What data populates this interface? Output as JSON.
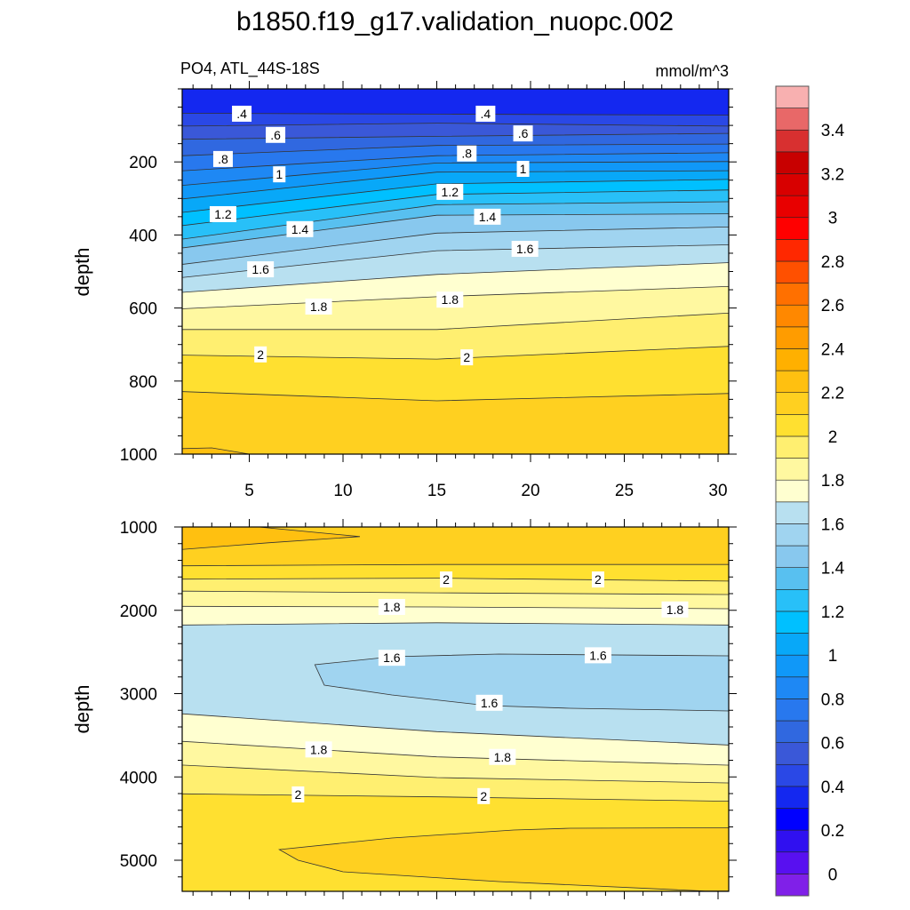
{
  "chart_data": {
    "type": "contour",
    "title": "b1850.f19_g17.validation_nuopc.002",
    "subtitle_left": "PO4, ATL_44S-18S",
    "subtitle_right": "mmol/m^3",
    "ylabel": "depth",
    "xlim": [
      1.4,
      30.6
    ],
    "x_ticks": [
      "5",
      "10",
      "15",
      "20",
      "25",
      "30"
    ],
    "x_tick_values": [
      5,
      10,
      15,
      20,
      25,
      30
    ],
    "profile_x": [
      1.5,
      15,
      30.5
    ],
    "top_panel": {
      "ylim": [
        0,
        1000
      ],
      "y_ticks": [
        "200",
        "400",
        "600",
        "800",
        "1000"
      ],
      "y_tick_values": [
        200,
        400,
        600,
        800,
        1000
      ],
      "surface_band_level": 0.3,
      "contours": [
        {
          "level": 0.4,
          "depth": [
            67,
            69,
            72
          ]
        },
        {
          "level": 0.5,
          "depth": [
            102,
            94,
            102
          ]
        },
        {
          "level": 0.6,
          "depth": [
            138,
            130,
            122
          ]
        },
        {
          "level": 0.7,
          "depth": [
            183,
            155,
            151
          ]
        },
        {
          "level": 0.8,
          "depth": [
            224,
            183,
            175
          ]
        },
        {
          "level": 0.9,
          "depth": [
            264,
            203,
            199
          ]
        },
        {
          "level": 1.0,
          "depth": [
            301,
            228,
            224
          ]
        },
        {
          "level": 1.1,
          "depth": [
            338,
            260,
            248
          ]
        },
        {
          "level": 1.2,
          "depth": [
            374,
            289,
            277
          ]
        },
        {
          "level": 1.3,
          "depth": [
            411,
            317,
            309
          ]
        },
        {
          "level": 1.4,
          "depth": [
            435,
            346,
            342
          ]
        },
        {
          "level": 1.5,
          "depth": [
            480,
            395,
            378
          ]
        },
        {
          "level": 1.6,
          "depth": [
            516,
            443,
            427
          ]
        },
        {
          "level": 1.7,
          "depth": [
            557,
            508,
            476
          ]
        },
        {
          "level": 1.8,
          "depth": [
            602,
            569,
            541
          ]
        },
        {
          "level": 1.9,
          "depth": [
            659,
            659,
            614
          ]
        },
        {
          "level": 2.0,
          "depth": [
            729,
            740,
            705
          ]
        },
        {
          "level": 2.1,
          "depth": [
            829,
            854,
            834
          ]
        }
      ],
      "pockets": [
        {
          "level": 2.2,
          "points": [
            [
              1.4,
              985
            ],
            [
              3,
              983
            ],
            [
              5,
              1000
            ],
            [
              1.4,
              1000
            ]
          ]
        }
      ],
      "labels": [
        {
          "text": ".4",
          "x": 4.6,
          "depth": 68
        },
        {
          "text": ".4",
          "x": 17.6,
          "depth": 68
        },
        {
          "text": ".6",
          "x": 6.4,
          "depth": 126
        },
        {
          "text": ".6",
          "x": 19.6,
          "depth": 122
        },
        {
          "text": ".8",
          "x": 3.6,
          "depth": 192
        },
        {
          "text": ".8",
          "x": 16.6,
          "depth": 177
        },
        {
          "text": "1",
          "x": 6.6,
          "depth": 234
        },
        {
          "text": "1",
          "x": 19.6,
          "depth": 219
        },
        {
          "text": "1.2",
          "x": 3.6,
          "depth": 343
        },
        {
          "text": "1.2",
          "x": 15.7,
          "depth": 282
        },
        {
          "text": "1.4",
          "x": 7.7,
          "depth": 384
        },
        {
          "text": "1.4",
          "x": 17.7,
          "depth": 350
        },
        {
          "text": "1.6",
          "x": 5.6,
          "depth": 494
        },
        {
          "text": "1.6",
          "x": 19.7,
          "depth": 438
        },
        {
          "text": "1.8",
          "x": 8.7,
          "depth": 596
        },
        {
          "text": "1.8",
          "x": 15.7,
          "depth": 577
        },
        {
          "text": "2",
          "x": 5.6,
          "depth": 727
        },
        {
          "text": "2",
          "x": 16.6,
          "depth": 735
        }
      ]
    },
    "bottom_panel": {
      "ylim": [
        1000,
        5370
      ],
      "y_ticks": [
        "1000",
        "2000",
        "3000",
        "4000",
        "5000"
      ],
      "y_tick_values": [
        1000,
        2000,
        3000,
        4000,
        5000
      ],
      "base_level": 2.1,
      "upper_contours": [
        {
          "level": 2.1,
          "depth": [
            1466,
            1450,
            1450
          ]
        },
        {
          "level": 2.0,
          "depth": [
            1626,
            1614,
            1650
          ]
        },
        {
          "level": 1.9,
          "depth": [
            1770,
            1790,
            1811
          ]
        },
        {
          "level": 1.8,
          "depth": [
            1953,
            1960,
            1981
          ]
        },
        {
          "level": 1.7,
          "depth": [
            2177,
            2150,
            2177
          ]
        }
      ],
      "lower_contours": [
        {
          "level": 1.7,
          "depth": [
            3243,
            3456,
            3616
          ]
        },
        {
          "level": 1.8,
          "depth": [
            3574,
            3759,
            3859
          ]
        },
        {
          "level": 1.9,
          "depth": [
            3859,
            4008,
            4072
          ]
        },
        {
          "level": 2.0,
          "depth": [
            4203,
            4239,
            4292
          ]
        }
      ],
      "pockets": [
        {
          "level": 1.5,
          "points": [
            [
              8.5,
              2653
            ],
            [
              9.0,
              2899
            ],
            [
              12.6,
              3016
            ],
            [
              17.7,
              3144
            ],
            [
              22.1,
              3176
            ],
            [
              30.6,
              3208
            ],
            [
              30.6,
              2547
            ],
            [
              18.3,
              2525
            ],
            [
              12.6,
              2557
            ]
          ]
        },
        {
          "level": 2.2,
          "points": [
            [
              1.4,
              1000
            ],
            [
              5.5,
              1000
            ],
            [
              10.9,
              1115
            ],
            [
              6.0,
              1190
            ],
            [
              1.4,
              1270
            ]
          ]
        },
        {
          "level": 2.1,
          "points": [
            [
              6.6,
              4872
            ],
            [
              12.6,
              4733
            ],
            [
              19.1,
              4637
            ],
            [
              22.1,
              4616
            ],
            [
              30.6,
              4610
            ],
            [
              30.6,
              5370
            ],
            [
              29.3,
              5370
            ],
            [
              18.3,
              5256
            ],
            [
              10.0,
              5139
            ],
            [
              7.6,
              5000
            ]
          ]
        }
      ],
      "labels": [
        {
          "text": "2",
          "x": 15.5,
          "depth": 1630
        },
        {
          "text": "2",
          "x": 23.6,
          "depth": 1630
        },
        {
          "text": "1.8",
          "x": 12.6,
          "depth": 1960
        },
        {
          "text": "1.8",
          "x": 27.7,
          "depth": 1990
        },
        {
          "text": "1.6",
          "x": 12.6,
          "depth": 2570
        },
        {
          "text": "1.6",
          "x": 23.6,
          "depth": 2540
        },
        {
          "text": "1.6",
          "x": 17.8,
          "depth": 3110
        },
        {
          "text": "1.8",
          "x": 8.7,
          "depth": 3670
        },
        {
          "text": "1.8",
          "x": 18.5,
          "depth": 3760
        },
        {
          "text": "2",
          "x": 7.6,
          "depth": 4210
        },
        {
          "text": "2",
          "x": 17.5,
          "depth": 4230
        }
      ]
    },
    "colorbar": {
      "labels": [
        "0",
        "0.2",
        "0.4",
        "0.6",
        "0.8",
        "1",
        "1.2",
        "1.4",
        "1.6",
        "1.8",
        "2",
        "2.2",
        "2.4",
        "2.6",
        "2.8",
        "3",
        "3.2",
        "3.4"
      ],
      "label_values": [
        0,
        0.2,
        0.4,
        0.6,
        0.8,
        1.0,
        1.2,
        1.4,
        1.6,
        1.8,
        2.0,
        2.2,
        2.4,
        2.6,
        2.8,
        3.0,
        3.2,
        3.4
      ],
      "min_level": 0,
      "level_step": 0.1,
      "colors": [
        "#8020e8",
        "#5810f0",
        "#3010f0",
        "#0000ff",
        "#1428f0",
        "#2a48e6",
        "#3a58d8",
        "#3068e0",
        "#2878ee",
        "#1e88f4",
        "#1098f8",
        "#08a8f8",
        "#00c0ff",
        "#28c0f8",
        "#58c0f0",
        "#88c8ee",
        "#a0d4f0",
        "#b8e0f0",
        "#ffffd0",
        "#fff8a0",
        "#ffef70",
        "#ffe030",
        "#ffd020",
        "#ffc010",
        "#ffb000",
        "#ff9c00",
        "#ff8800",
        "#ff7000",
        "#ff5000",
        "#ff2800",
        "#ff0000",
        "#e80000",
        "#d80000",
        "#c80000",
        "#d83030",
        "#e86868",
        "#f8b0b0"
      ]
    }
  }
}
